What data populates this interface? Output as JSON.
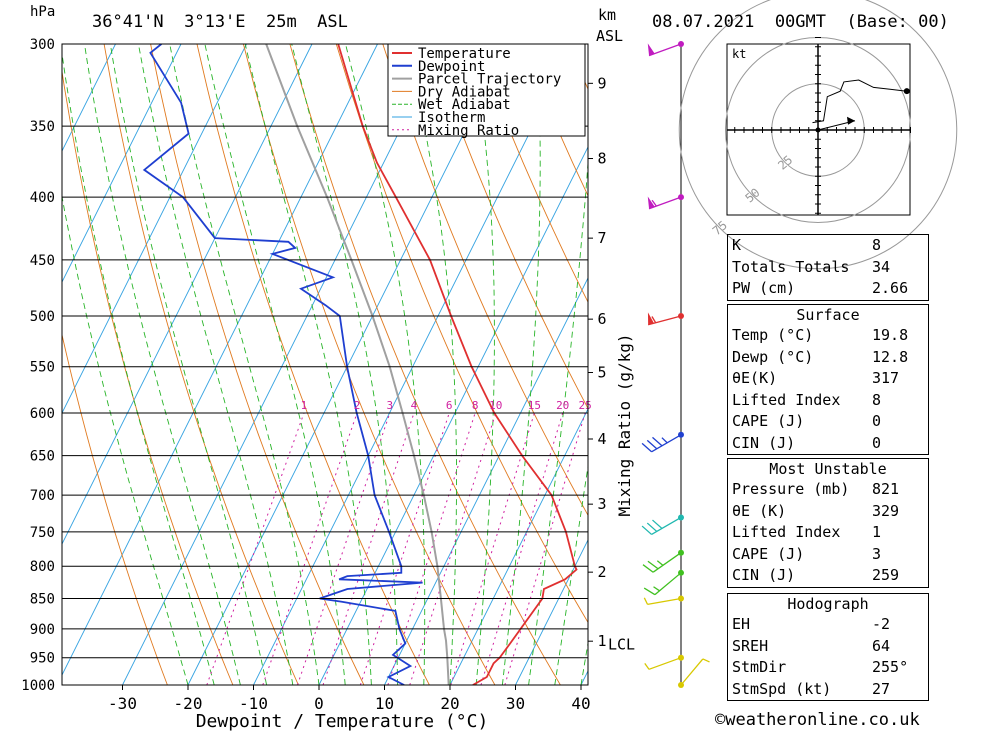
{
  "header": {
    "left_unit": "hPa",
    "location": "36°41'N  3°13'E  25m  ASL",
    "km_label": "km",
    "asl_label": "ASL",
    "datetime": "08.07.2021  00GMT  (Base: 00)"
  },
  "footer": {
    "copyright": "©weatheronline.co.uk"
  },
  "chart_data": {
    "type": "line",
    "title": "",
    "xlabel": "Dewpoint / Temperature (°C)",
    "ylabel": "hPa",
    "secondary_ylabel": "Mixing Ratio (g/kg)",
    "x_ticks": [
      -30,
      -20,
      -10,
      0,
      10,
      20,
      30,
      40
    ],
    "pressure_levels": [
      300,
      350,
      400,
      450,
      500,
      550,
      600,
      650,
      700,
      750,
      800,
      850,
      900,
      950,
      1000
    ],
    "height_km_labels": [
      "9",
      "8",
      "7",
      "6",
      "5",
      "4",
      "3",
      "2",
      "1"
    ],
    "lcl_label": "LCL",
    "mixing_ratio_labels": [
      "1",
      "2",
      "3",
      "4",
      "6",
      "8",
      "10",
      "15",
      "20",
      "25"
    ],
    "legend": [
      "Temperature",
      "Dewpoint",
      "Parcel Trajectory",
      "Dry Adiabat",
      "Wet Adiabat",
      "Isotherm",
      "Mixing Ratio"
    ],
    "legend_position": "top-right",
    "colors": {
      "temperature": "#e03030",
      "dewpoint": "#1f3fd0",
      "parcel": "#a0a0a0",
      "dry_adiabat": "#e07a20",
      "wet_adiabat": "#28b428",
      "isotherm": "#30a0e0",
      "mixing_ratio": "#d020a0"
    },
    "series": [
      {
        "name": "Temperature",
        "points": [
          {
            "p": 1000,
            "t": 23.5
          },
          {
            "p": 985,
            "t": 25.0
          },
          {
            "p": 960,
            "t": 25.0
          },
          {
            "p": 950,
            "t": 25.5
          },
          {
            "p": 925,
            "t": 26.0
          },
          {
            "p": 900,
            "t": 26.5
          },
          {
            "p": 850,
            "t": 27.5
          },
          {
            "p": 835,
            "t": 27.0
          },
          {
            "p": 820,
            "t": 29.5
          },
          {
            "p": 805,
            "t": 30.5
          },
          {
            "p": 800,
            "t": 30.0
          },
          {
            "p": 750,
            "t": 26.0
          },
          {
            "p": 700,
            "t": 21.0
          },
          {
            "p": 650,
            "t": 13.5
          },
          {
            "p": 600,
            "t": 6.0
          },
          {
            "p": 550,
            "t": -1.0
          },
          {
            "p": 500,
            "t": -8.0
          },
          {
            "p": 450,
            "t": -15.5
          },
          {
            "p": 400,
            "t": -25.5
          },
          {
            "p": 375,
            "t": -31.0
          },
          {
            "p": 350,
            "t": -36.0
          },
          {
            "p": 300,
            "t": -46.0
          }
        ]
      },
      {
        "name": "Dewpoint",
        "points": [
          {
            "p": 1000,
            "t": 13.0
          },
          {
            "p": 985,
            "t": 10.0
          },
          {
            "p": 965,
            "t": 12.5
          },
          {
            "p": 945,
            "t": 9.0
          },
          {
            "p": 925,
            "t": 10.0
          },
          {
            "p": 900,
            "t": 8.0
          },
          {
            "p": 870,
            "t": 6.0
          },
          {
            "p": 855,
            "t": -3.0
          },
          {
            "p": 850,
            "t": -6.5
          },
          {
            "p": 835,
            "t": -3.0
          },
          {
            "p": 825,
            "t": 8.0
          },
          {
            "p": 820,
            "t": -5.0
          },
          {
            "p": 815,
            "t": -4.0
          },
          {
            "p": 810,
            "t": 4.0
          },
          {
            "p": 800,
            "t": 3.5
          },
          {
            "p": 750,
            "t": -1.0
          },
          {
            "p": 700,
            "t": -6.0
          },
          {
            "p": 650,
            "t": -10.0
          },
          {
            "p": 600,
            "t": -15.0
          },
          {
            "p": 550,
            "t": -20.0
          },
          {
            "p": 500,
            "t": -25.0
          },
          {
            "p": 490,
            "t": -28.0
          },
          {
            "p": 475,
            "t": -33.0
          },
          {
            "p": 465,
            "t": -29.0
          },
          {
            "p": 445,
            "t": -40.0
          },
          {
            "p": 440,
            "t": -37.0
          },
          {
            "p": 435,
            "t": -38.5
          },
          {
            "p": 432,
            "t": -50.0
          },
          {
            "p": 400,
            "t": -58.0
          },
          {
            "p": 380,
            "t": -66.0
          },
          {
            "p": 355,
            "t": -62.0
          },
          {
            "p": 335,
            "t": -65.5
          },
          {
            "p": 305,
            "t": -74.0
          },
          {
            "p": 300,
            "t": -73.0
          }
        ]
      },
      {
        "name": "Parcel Trajectory",
        "points": [
          {
            "p": 1000,
            "t": 19.8
          },
          {
            "p": 950,
            "t": 17.5
          },
          {
            "p": 920,
            "t": 16.0
          },
          {
            "p": 900,
            "t": 14.8
          },
          {
            "p": 850,
            "t": 12.0
          },
          {
            "p": 800,
            "t": 9.0
          },
          {
            "p": 750,
            "t": 5.5
          },
          {
            "p": 700,
            "t": 1.5
          },
          {
            "p": 650,
            "t": -3.0
          },
          {
            "p": 600,
            "t": -8.0
          },
          {
            "p": 550,
            "t": -13.5
          },
          {
            "p": 500,
            "t": -20.0
          },
          {
            "p": 450,
            "t": -27.5
          },
          {
            "p": 400,
            "t": -36.0
          },
          {
            "p": 350,
            "t": -46.0
          },
          {
            "p": 300,
            "t": -57.0
          }
        ]
      }
    ],
    "wind_barbs": [
      {
        "p": 300,
        "dir": 250,
        "spd": 50
      },
      {
        "p": 400,
        "dir": 250,
        "spd": 55
      },
      {
        "p": 500,
        "dir": 255,
        "spd": 55
      },
      {
        "p": 625,
        "dir": 240,
        "spd": 35
      },
      {
        "p": 730,
        "dir": 240,
        "spd": 30
      },
      {
        "p": 780,
        "dir": 235,
        "spd": 25
      },
      {
        "p": 810,
        "dir": 230,
        "spd": 15
      },
      {
        "p": 850,
        "dir": 260,
        "spd": 5
      },
      {
        "p": 950,
        "dir": 250,
        "spd": 5
      },
      {
        "p": 1000,
        "dir": 40,
        "spd": 5
      }
    ],
    "hodograph": {
      "unit_label": "kt",
      "ring_labels": [
        "25",
        "50",
        "75"
      ],
      "points": [
        [
          -3,
          4
        ],
        [
          3,
          5
        ],
        [
          5,
          18
        ],
        [
          12,
          21
        ],
        [
          14,
          26
        ],
        [
          22,
          27
        ],
        [
          30,
          23
        ],
        [
          48,
          21
        ]
      ],
      "storm_motion": [
        20,
        5
      ]
    }
  },
  "indices": [
    {
      "name": "K",
      "value": "8"
    },
    {
      "name": "Totals Totals",
      "value": "34"
    },
    {
      "name": "PW (cm)",
      "value": "2.66"
    }
  ],
  "surface": {
    "title": "Surface",
    "rows": [
      {
        "name": "Temp (°C)",
        "value": "19.8"
      },
      {
        "name": "Dewp (°C)",
        "value": "12.8"
      },
      {
        "name": "θE(K)",
        "value": "317"
      },
      {
        "name": "Lifted Index",
        "value": "8"
      },
      {
        "name": "CAPE (J)",
        "value": "0"
      },
      {
        "name": "CIN (J)",
        "value": "0"
      }
    ]
  },
  "most_unstable": {
    "title": "Most Unstable",
    "rows": [
      {
        "name": "Pressure (mb)",
        "value": "821"
      },
      {
        "name": "θE (K)",
        "value": "329"
      },
      {
        "name": "Lifted Index",
        "value": "1"
      },
      {
        "name": "CAPE (J)",
        "value": "3"
      },
      {
        "name": "CIN (J)",
        "value": "259"
      }
    ]
  },
  "hodograph_table": {
    "title": "Hodograph",
    "rows": [
      {
        "name": "EH",
        "value": "-2"
      },
      {
        "name": "SREH",
        "value": "64"
      },
      {
        "name": "StmDir",
        "value": "255°"
      },
      {
        "name": "StmSpd (kt)",
        "value": "27"
      }
    ]
  }
}
